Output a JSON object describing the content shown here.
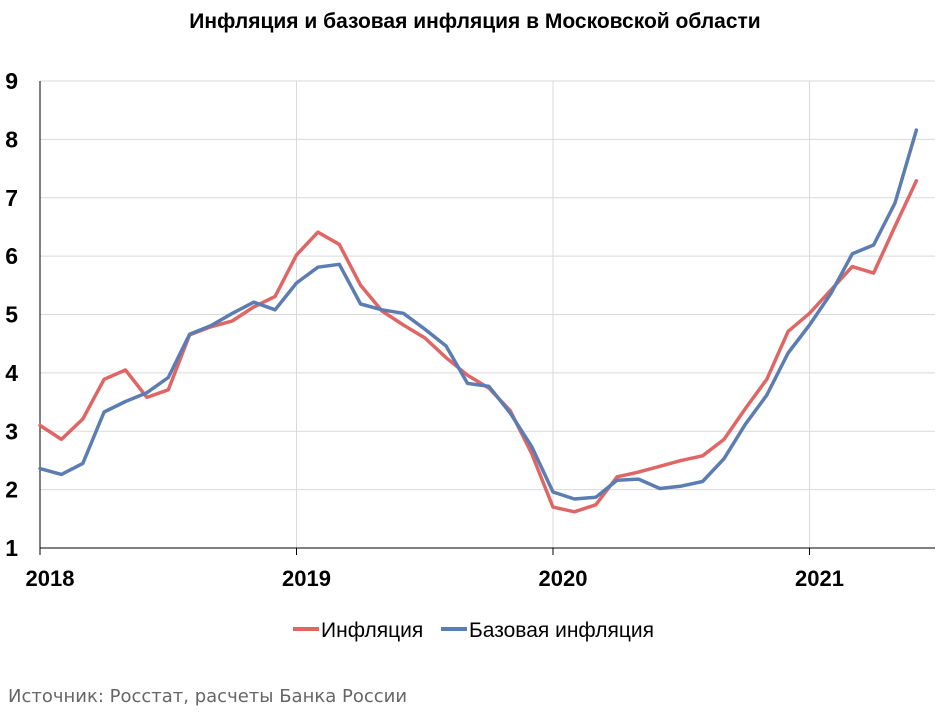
{
  "chart_data": {
    "type": "line",
    "title": "Инфляция и базовая инфляция в Московской области",
    "x_start_year": 2018,
    "x_tick_labels": [
      "2018",
      "2019",
      "2020",
      "2021"
    ],
    "ylim": [
      1,
      9
    ],
    "y_ticks": [
      1,
      2,
      3,
      4,
      5,
      6,
      7,
      8,
      9
    ],
    "grid": true,
    "legend": "bottom",
    "series": [
      {
        "name": "Инфляция",
        "color": "#e06666",
        "x": [
          "2018-01",
          "2018-02",
          "2018-03",
          "2018-04",
          "2018-05",
          "2018-06",
          "2018-07",
          "2018-08",
          "2018-09",
          "2018-10",
          "2018-11",
          "2018-12",
          "2019-01",
          "2019-02",
          "2019-03",
          "2019-04",
          "2019-05",
          "2019-06",
          "2019-07",
          "2019-08",
          "2019-09",
          "2019-10",
          "2019-11",
          "2019-12",
          "2020-01",
          "2020-02",
          "2020-03",
          "2020-04",
          "2020-05",
          "2020-06",
          "2020-07",
          "2020-08",
          "2020-09",
          "2020-10",
          "2020-11",
          "2020-12",
          "2021-01",
          "2021-02",
          "2021-03",
          "2021-04",
          "2021-05",
          "2021-06"
        ],
        "values": [
          3.1,
          2.86,
          3.21,
          3.89,
          4.05,
          3.58,
          3.71,
          4.65,
          4.79,
          4.89,
          5.13,
          5.31,
          6.02,
          6.41,
          6.2,
          5.5,
          5.06,
          4.82,
          4.6,
          4.26,
          3.96,
          3.74,
          3.35,
          2.62,
          1.7,
          1.62,
          1.74,
          2.22,
          2.3,
          2.4,
          2.5,
          2.58,
          2.86,
          3.39,
          3.89,
          4.71,
          5.02,
          5.42,
          5.82,
          5.71,
          6.51,
          7.29
        ]
      },
      {
        "name": "Базовая инфляция",
        "color": "#5b7db1",
        "x": [
          "2018-01",
          "2018-02",
          "2018-03",
          "2018-04",
          "2018-05",
          "2018-06",
          "2018-07",
          "2018-08",
          "2018-09",
          "2018-10",
          "2018-11",
          "2018-12",
          "2019-01",
          "2019-02",
          "2019-03",
          "2019-04",
          "2019-05",
          "2019-06",
          "2019-07",
          "2019-08",
          "2019-09",
          "2019-10",
          "2019-11",
          "2019-12",
          "2020-01",
          "2020-02",
          "2020-03",
          "2020-04",
          "2020-05",
          "2020-06",
          "2020-07",
          "2020-08",
          "2020-09",
          "2020-10",
          "2020-11",
          "2020-12",
          "2021-01",
          "2021-02",
          "2021-03",
          "2021-04",
          "2021-05",
          "2021-06"
        ],
        "values": [
          2.36,
          2.26,
          2.45,
          3.33,
          3.51,
          3.66,
          3.92,
          4.66,
          4.81,
          5.02,
          5.21,
          5.08,
          5.54,
          5.81,
          5.86,
          5.18,
          5.08,
          5.02,
          4.75,
          4.46,
          3.82,
          3.77,
          3.31,
          2.74,
          1.96,
          1.84,
          1.87,
          2.16,
          2.18,
          2.02,
          2.06,
          2.14,
          2.53,
          3.12,
          3.62,
          4.34,
          4.82,
          5.36,
          6.04,
          6.19,
          6.91,
          8.16
        ]
      }
    ]
  },
  "source_text": "Источник: Росстат, расчеты Банка России"
}
